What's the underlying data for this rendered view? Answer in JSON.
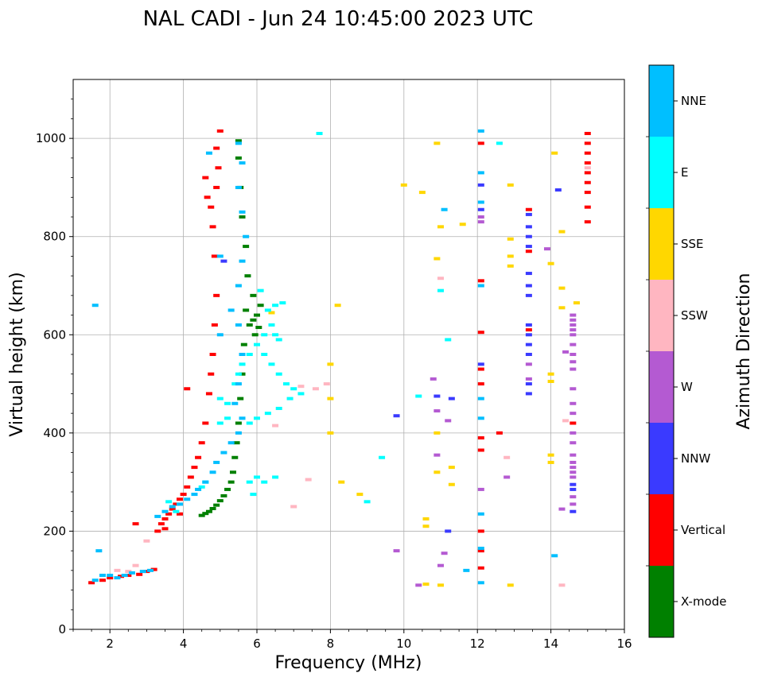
{
  "chart_data": {
    "type": "scatter",
    "title": "NAL CADI - Jun 24 10:45:00 2023 UTC",
    "xlabel": "Frequency (MHz)",
    "ylabel": "Virtual height (km)",
    "xlim": [
      1,
      16
    ],
    "ylim": [
      0,
      1120
    ],
    "xticks": [
      2,
      4,
      6,
      8,
      10,
      12,
      14,
      16
    ],
    "yticks": [
      0,
      200,
      400,
      600,
      800,
      1000
    ],
    "grid": true,
    "colorbar": {
      "label": "Azimuth Direction",
      "categories": [
        {
          "name": "X-mode",
          "color": "#008000"
        },
        {
          "name": "Vertical",
          "color": "#ff0000"
        },
        {
          "name": "NNW",
          "color": "#3a3aff"
        },
        {
          "name": "W",
          "color": "#b45ad2"
        },
        {
          "name": "SSW",
          "color": "#ffb6c1"
        },
        {
          "name": "SSE",
          "color": "#ffd700"
        },
        {
          "name": "E",
          "color": "#00ffff"
        },
        {
          "name": "NNE",
          "color": "#00bfff"
        }
      ]
    },
    "series": [
      {
        "name": "X-mode",
        "points": [
          [
            4.5,
            232
          ],
          [
            4.6,
            236
          ],
          [
            4.7,
            240
          ],
          [
            4.8,
            246
          ],
          [
            4.9,
            253
          ],
          [
            5.0,
            262
          ],
          [
            5.1,
            272
          ],
          [
            5.2,
            285
          ],
          [
            5.3,
            300
          ],
          [
            5.35,
            320
          ],
          [
            5.4,
            350
          ],
          [
            5.45,
            380
          ],
          [
            5.5,
            420
          ],
          [
            5.55,
            470
          ],
          [
            5.6,
            520
          ],
          [
            5.65,
            580
          ],
          [
            5.7,
            650
          ],
          [
            5.75,
            720
          ],
          [
            5.7,
            780
          ],
          [
            5.6,
            840
          ],
          [
            5.55,
            900
          ],
          [
            5.5,
            960
          ],
          [
            5.5,
            995
          ],
          [
            5.8,
            620
          ],
          [
            5.9,
            630
          ],
          [
            6.0,
            640
          ],
          [
            6.1,
            660
          ],
          [
            5.9,
            680
          ],
          [
            5.95,
            600
          ],
          [
            6.05,
            615
          ]
        ]
      },
      {
        "name": "Vertical",
        "points": [
          [
            1.5,
            95
          ],
          [
            1.8,
            100
          ],
          [
            2.0,
            105
          ],
          [
            2.3,
            108
          ],
          [
            2.5,
            110
          ],
          [
            2.8,
            112
          ],
          [
            3.0,
            118
          ],
          [
            3.2,
            122
          ],
          [
            3.3,
            200
          ],
          [
            3.4,
            215
          ],
          [
            3.5,
            225
          ],
          [
            3.6,
            235
          ],
          [
            3.7,
            245
          ],
          [
            3.8,
            255
          ],
          [
            3.9,
            265
          ],
          [
            4.0,
            275
          ],
          [
            4.1,
            290
          ],
          [
            4.2,
            310
          ],
          [
            4.3,
            330
          ],
          [
            4.4,
            350
          ],
          [
            4.5,
            380
          ],
          [
            4.6,
            420
          ],
          [
            4.7,
            480
          ],
          [
            4.75,
            520
          ],
          [
            4.8,
            560
          ],
          [
            4.85,
            620
          ],
          [
            4.9,
            680
          ],
          [
            4.85,
            760
          ],
          [
            4.8,
            820
          ],
          [
            4.75,
            860
          ],
          [
            4.9,
            900
          ],
          [
            4.95,
            940
          ],
          [
            4.9,
            980
          ],
          [
            5.0,
            1015
          ],
          [
            4.1,
            490
          ],
          [
            4.6,
            920
          ],
          [
            4.65,
            880
          ],
          [
            3.5,
            205
          ],
          [
            2.7,
            215
          ],
          [
            3.9,
            235
          ],
          [
            12.1,
            530
          ],
          [
            12.1,
            500
          ],
          [
            12.1,
            390
          ],
          [
            12.1,
            365
          ],
          [
            12.1,
            200
          ],
          [
            12.1,
            160
          ],
          [
            12.1,
            125
          ],
          [
            12.1,
            710
          ],
          [
            12.1,
            990
          ],
          [
            12.1,
            605
          ],
          [
            12.6,
            400
          ],
          [
            15.0,
            1010
          ],
          [
            15.0,
            990
          ],
          [
            15.0,
            970
          ],
          [
            15.0,
            950
          ],
          [
            15.0,
            930
          ],
          [
            15.0,
            910
          ],
          [
            15.0,
            890
          ],
          [
            15.0,
            860
          ],
          [
            15.0,
            830
          ],
          [
            13.4,
            855
          ],
          [
            13.4,
            770
          ],
          [
            13.4,
            610
          ],
          [
            14.6,
            420
          ]
        ]
      },
      {
        "name": "NNW",
        "points": [
          [
            13.4,
            845
          ],
          [
            13.4,
            820
          ],
          [
            13.4,
            800
          ],
          [
            13.4,
            780
          ],
          [
            13.4,
            725
          ],
          [
            13.4,
            700
          ],
          [
            13.4,
            680
          ],
          [
            13.4,
            620
          ],
          [
            13.4,
            600
          ],
          [
            13.4,
            580
          ],
          [
            13.4,
            560
          ],
          [
            13.4,
            500
          ],
          [
            13.4,
            480
          ],
          [
            14.6,
            295
          ],
          [
            14.6,
            285
          ],
          [
            14.6,
            240
          ],
          [
            12.1,
            905
          ],
          [
            12.1,
            855
          ],
          [
            12.1,
            540
          ],
          [
            10.9,
            475
          ],
          [
            11.3,
            470
          ],
          [
            9.8,
            435
          ],
          [
            5.1,
            750
          ],
          [
            14.2,
            895
          ],
          [
            11.2,
            200
          ]
        ]
      },
      {
        "name": "W",
        "points": [
          [
            14.6,
            640
          ],
          [
            14.6,
            630
          ],
          [
            14.6,
            620
          ],
          [
            14.6,
            610
          ],
          [
            14.6,
            600
          ],
          [
            14.6,
            580
          ],
          [
            14.6,
            560
          ],
          [
            14.6,
            545
          ],
          [
            14.6,
            530
          ],
          [
            14.6,
            490
          ],
          [
            14.6,
            460
          ],
          [
            14.6,
            440
          ],
          [
            14.6,
            400
          ],
          [
            14.6,
            380
          ],
          [
            14.6,
            355
          ],
          [
            14.6,
            340
          ],
          [
            14.6,
            330
          ],
          [
            14.6,
            320
          ],
          [
            14.6,
            310
          ],
          [
            14.6,
            270
          ],
          [
            14.6,
            255
          ],
          [
            14.4,
            565
          ],
          [
            14.3,
            245
          ],
          [
            13.4,
            540
          ],
          [
            13.4,
            510
          ],
          [
            12.1,
            840
          ],
          [
            12.1,
            830
          ],
          [
            12.8,
            310
          ],
          [
            13.9,
            775
          ],
          [
            10.9,
            445
          ],
          [
            10.9,
            355
          ],
          [
            11.1,
            155
          ],
          [
            11.0,
            130
          ],
          [
            10.4,
            90
          ],
          [
            10.8,
            510
          ],
          [
            11.2,
            425
          ],
          [
            9.8,
            160
          ],
          [
            12.1,
            285
          ]
        ]
      },
      {
        "name": "SSW",
        "points": [
          [
            7.0,
            250
          ],
          [
            7.4,
            305
          ],
          [
            7.6,
            490
          ],
          [
            7.9,
            500
          ],
          [
            11.0,
            715
          ],
          [
            12.8,
            350
          ],
          [
            14.4,
            425
          ],
          [
            14.3,
            90
          ],
          [
            15.0,
            940
          ],
          [
            2.2,
            120
          ],
          [
            2.5,
            118
          ],
          [
            3.0,
            180
          ],
          [
            2.7,
            130
          ],
          [
            6.5,
            415
          ],
          [
            7.2,
            495
          ]
        ]
      },
      {
        "name": "SSE",
        "points": [
          [
            8.3,
            300
          ],
          [
            8.8,
            275
          ],
          [
            10.6,
            225
          ],
          [
            10.6,
            210
          ],
          [
            10.9,
            400
          ],
          [
            10.9,
            320
          ],
          [
            11.3,
            330
          ],
          [
            11.3,
            295
          ],
          [
            11.0,
            90
          ],
          [
            10.6,
            92
          ],
          [
            12.9,
            90
          ],
          [
            12.9,
            760
          ],
          [
            12.9,
            740
          ],
          [
            12.9,
            795
          ],
          [
            12.9,
            905
          ],
          [
            14.0,
            745
          ],
          [
            14.0,
            520
          ],
          [
            14.0,
            505
          ],
          [
            14.3,
            695
          ],
          [
            14.3,
            655
          ],
          [
            14.3,
            810
          ],
          [
            14.7,
            665
          ],
          [
            14.0,
            340
          ],
          [
            14.0,
            355
          ],
          [
            10.9,
            755
          ],
          [
            10.9,
            990
          ],
          [
            10.5,
            890
          ],
          [
            11.0,
            820
          ],
          [
            10.0,
            905
          ],
          [
            8.2,
            660
          ],
          [
            8.0,
            540
          ],
          [
            8.0,
            400
          ],
          [
            8.0,
            470
          ],
          [
            11.6,
            825
          ],
          [
            14.1,
            970
          ],
          [
            6.4,
            645
          ]
        ]
      },
      {
        "name": "E",
        "points": [
          [
            5.0,
            420
          ],
          [
            5.2,
            460
          ],
          [
            5.4,
            500
          ],
          [
            5.5,
            520
          ],
          [
            5.6,
            540
          ],
          [
            5.8,
            560
          ],
          [
            6.0,
            580
          ],
          [
            6.2,
            600
          ],
          [
            6.4,
            620
          ],
          [
            6.5,
            600
          ],
          [
            6.6,
            590
          ],
          [
            6.2,
            560
          ],
          [
            6.4,
            540
          ],
          [
            6.6,
            520
          ],
          [
            6.8,
            500
          ],
          [
            7.0,
            490
          ],
          [
            7.2,
            480
          ],
          [
            6.9,
            470
          ],
          [
            6.6,
            450
          ],
          [
            6.3,
            440
          ],
          [
            6.0,
            430
          ],
          [
            5.8,
            420
          ],
          [
            6.1,
            690
          ],
          [
            6.3,
            650
          ],
          [
            6.5,
            660
          ],
          [
            6.7,
            665
          ],
          [
            6.0,
            310
          ],
          [
            6.5,
            310
          ],
          [
            5.8,
            300
          ],
          [
            6.2,
            300
          ],
          [
            5.0,
            470
          ],
          [
            5.2,
            430
          ],
          [
            4.5,
            290
          ],
          [
            4.6,
            300
          ],
          [
            3.6,
            260
          ],
          [
            3.8,
            240
          ],
          [
            12.6,
            990
          ],
          [
            11.2,
            590
          ],
          [
            11.0,
            690
          ],
          [
            7.7,
            1010
          ],
          [
            9.4,
            350
          ],
          [
            9.0,
            260
          ],
          [
            10.4,
            475
          ],
          [
            5.9,
            275
          ]
        ]
      },
      {
        "name": "NNE",
        "points": [
          [
            1.6,
            100
          ],
          [
            1.8,
            110
          ],
          [
            2.0,
            110
          ],
          [
            2.2,
            105
          ],
          [
            2.4,
            110
          ],
          [
            2.6,
            115
          ],
          [
            2.9,
            118
          ],
          [
            3.1,
            120
          ],
          [
            3.3,
            230
          ],
          [
            3.5,
            240
          ],
          [
            3.7,
            250
          ],
          [
            3.9,
            255
          ],
          [
            4.1,
            265
          ],
          [
            4.3,
            275
          ],
          [
            4.4,
            285
          ],
          [
            4.6,
            300
          ],
          [
            4.8,
            320
          ],
          [
            4.9,
            340
          ],
          [
            5.1,
            360
          ],
          [
            5.3,
            380
          ],
          [
            5.5,
            400
          ],
          [
            5.6,
            430
          ],
          [
            5.4,
            460
          ],
          [
            5.5,
            500
          ],
          [
            5.6,
            560
          ],
          [
            5.5,
            620
          ],
          [
            5.3,
            650
          ],
          [
            5.5,
            700
          ],
          [
            5.6,
            750
          ],
          [
            5.7,
            800
          ],
          [
            5.6,
            850
          ],
          [
            5.5,
            900
          ],
          [
            5.6,
            950
          ],
          [
            5.5,
            990
          ],
          [
            4.7,
            970
          ],
          [
            5.0,
            760
          ],
          [
            5.0,
            600
          ],
          [
            1.6,
            660
          ],
          [
            1.7,
            160
          ],
          [
            12.1,
            1015
          ],
          [
            12.1,
            930
          ],
          [
            12.1,
            870
          ],
          [
            12.1,
            700
          ],
          [
            12.1,
            470
          ],
          [
            12.1,
            430
          ],
          [
            12.1,
            235
          ],
          [
            12.1,
            165
          ],
          [
            12.1,
            95
          ],
          [
            11.1,
            855
          ],
          [
            11.7,
            120
          ],
          [
            14.1,
            150
          ]
        ]
      }
    ]
  }
}
